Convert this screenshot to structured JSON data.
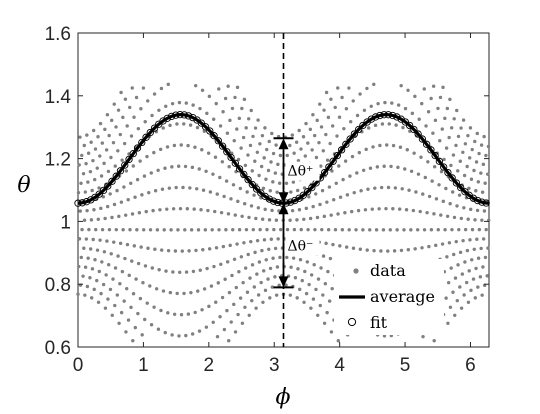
{
  "chart_data": {
    "type": "scatter",
    "xlabel": "ϕ",
    "ylabel": "θ",
    "xlim": [
      0,
      6.2832
    ],
    "ylim": [
      0.6,
      1.6
    ],
    "xticks": [
      0,
      1,
      2,
      3,
      4,
      5,
      6
    ],
    "xtick_labels": [
      "0",
      "1",
      "2",
      "3",
      "4",
      "5",
      "6"
    ],
    "yticks": [
      0.6,
      0.8,
      1,
      1.2,
      1.4,
      1.6
    ],
    "ytick_labels": [
      "0.6",
      "0.8",
      "1",
      "1.2",
      "1.4",
      "1.6"
    ],
    "grid": false,
    "legend_position": "bottom-right",
    "series": [
      {
        "name": "data",
        "style": "gray-dots",
        "color": "#808080",
        "model": {
          "base_curve": "average",
          "amplitude_scale_range": [
            -0.95,
            1.35
          ],
          "offset_range": [
            -0.29,
            0.21
          ],
          "num_curves": 18,
          "points_per_curve": 60
        }
      },
      {
        "name": "average",
        "style": "thick-line",
        "color": "#000000",
        "model": {
          "formula": "y = a + b*sin(x)^2",
          "a": 1.058,
          "b": 0.282
        }
      },
      {
        "name": "fit",
        "style": "open-circles",
        "color": "#000000",
        "x_step": 0.065,
        "model": {
          "formula": "y = a + b*sin(x)^2",
          "a": 1.058,
          "b": 0.282
        }
      }
    ],
    "annotations": {
      "dashed_line_x": 3.1416,
      "center_y": 1.058,
      "upper_y": 1.265,
      "lower_y": 0.79,
      "delta_plus_label": "Δθ⁺",
      "delta_minus_label": "Δθ⁻"
    }
  }
}
